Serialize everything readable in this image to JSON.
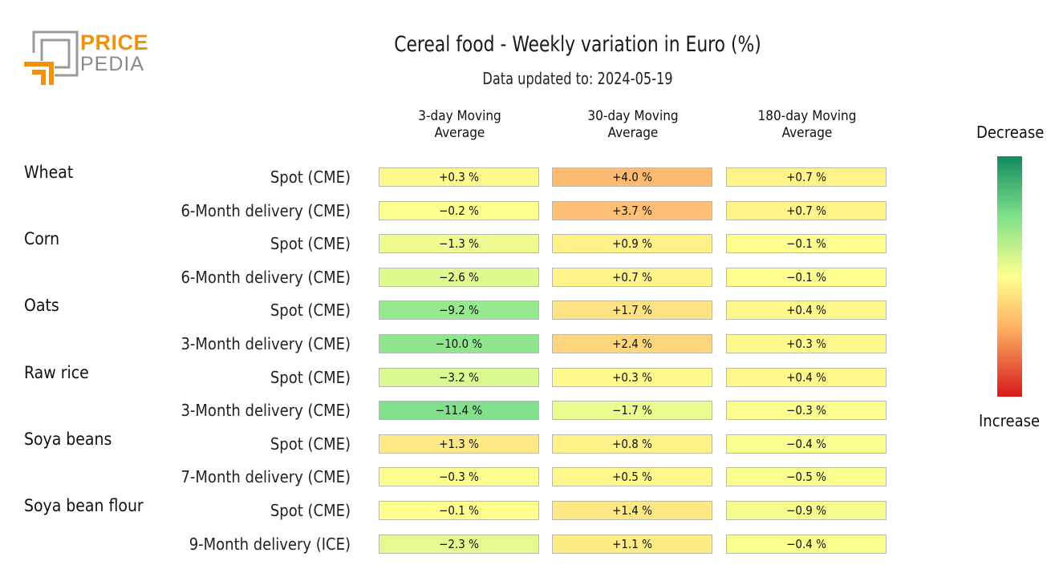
{
  "brand": {
    "line1": "PRICE",
    "line2": "PEDIA"
  },
  "title": "Cereal food - Weekly variation in Euro (%)",
  "subtitle": "Data updated to: 2024-05-19",
  "legend": {
    "top": "Decrease",
    "bottom": "Increase"
  },
  "colors": {
    "green": "#118c5f",
    "yellow": "#ffff8f",
    "orange": "#fdae61",
    "red": "#d7191c",
    "cell_border": "#b9b9b9"
  },
  "chart_data": {
    "type": "heatmap",
    "title": "Cereal food - Weekly variation in Euro (%)",
    "subtitle": "Data updated to: 2024-05-19",
    "columns": [
      "3-day Moving\nAverage",
      "30-day Moving\nAverage",
      "180-day Moving\nAverage"
    ],
    "value_suffix": " %",
    "color_range": [
      -15,
      5
    ],
    "groups": [
      {
        "name": "Wheat",
        "rows": [
          {
            "label": "Spot (CME)",
            "values": [
              "+0.3",
              "+4.0",
              "+0.7"
            ]
          },
          {
            "label": "6-Month delivery (CME)",
            "values": [
              "−0.2",
              "+3.7",
              "+0.7"
            ]
          }
        ]
      },
      {
        "name": "Corn",
        "rows": [
          {
            "label": "Spot (CME)",
            "values": [
              "−1.3",
              "+0.9",
              "−0.1"
            ]
          },
          {
            "label": "6-Month delivery (CME)",
            "values": [
              "−2.6",
              "+0.7",
              "−0.1"
            ]
          }
        ]
      },
      {
        "name": "Oats",
        "rows": [
          {
            "label": "Spot (CME)",
            "values": [
              "−9.2",
              "+1.7",
              "+0.4"
            ]
          },
          {
            "label": "3-Month delivery (CME)",
            "values": [
              "−10.0",
              "+2.4",
              "+0.3"
            ]
          }
        ]
      },
      {
        "name": "Raw rice",
        "rows": [
          {
            "label": "Spot (CME)",
            "values": [
              "−3.2",
              "+0.3",
              "+0.4"
            ]
          },
          {
            "label": "3-Month delivery (CME)",
            "values": [
              "−11.4",
              "−1.7",
              "−0.3"
            ]
          }
        ]
      },
      {
        "name": "Soya beans",
        "rows": [
          {
            "label": "Spot (CME)",
            "values": [
              "+1.3",
              "+0.8",
              "−0.4"
            ]
          },
          {
            "label": "7-Month delivery (CME)",
            "values": [
              "−0.3",
              "+0.5",
              "−0.5"
            ]
          }
        ]
      },
      {
        "name": "Soya bean flour",
        "rows": [
          {
            "label": "Spot (CME)",
            "values": [
              "−0.1",
              "+1.4",
              "−0.9"
            ]
          },
          {
            "label": "9-Month delivery (ICE)",
            "values": [
              "−2.3",
              "+1.1",
              "−0.4"
            ]
          }
        ]
      }
    ]
  }
}
